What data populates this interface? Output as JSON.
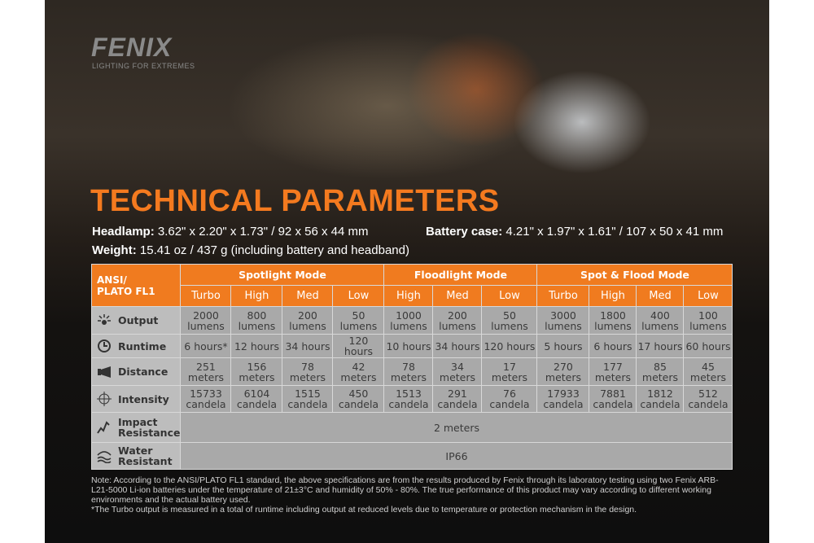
{
  "header": {
    "brand": "FENIX",
    "tagline": "LIGHTING FOR EXTREMES",
    "title": "TECHNICAL PARAMETERS"
  },
  "specs": [
    {
      "label": "Headlamp:",
      "value": "3.62\" x 2.20\" x 1.73\" / 92 x 56 x 44 mm"
    },
    {
      "label": "Battery case:",
      "value": "4.21\" x 1.97\" x 1.61\" / 107 x 50 x 41 mm"
    },
    {
      "label": "Weight:",
      "value": "15.41 oz / 437 g (including battery and headband)"
    }
  ],
  "table": {
    "corner": [
      "ANSI/",
      "PLATO  FL1"
    ],
    "groups": [
      {
        "name": "Spotlight Mode",
        "span": 4
      },
      {
        "name": "Floodlight Mode",
        "span": 3
      },
      {
        "name": "Spot & Flood Mode",
        "span": 4
      }
    ],
    "levels": [
      "Turbo",
      "High",
      "Med",
      "Low",
      "High",
      "Med",
      "Low",
      "Turbo",
      "High",
      "Med",
      "Low"
    ],
    "rows": [
      {
        "label": "Output",
        "cells": [
          "2000\nlumens",
          "800\nlumens",
          "200\nlumens",
          "50\nlumens",
          "1000\nlumens",
          "200\nlumens",
          "50\nlumens",
          "3000\nlumens",
          "1800\nlumens",
          "400\nlumens",
          "100\nlumens"
        ]
      },
      {
        "label": "Runtime",
        "cells": [
          "6 hours*",
          "12 hours",
          "34 hours",
          "120 hours",
          "10 hours",
          "34 hours",
          "120 hours",
          "5 hours",
          "6 hours",
          "17 hours",
          "60 hours"
        ]
      },
      {
        "label": "Distance",
        "cells": [
          "251\nmeters",
          "156\nmeters",
          "78\nmeters",
          "42\nmeters",
          "78\nmeters",
          "34\nmeters",
          "17\nmeters",
          "270\nmeters",
          "177\nmeters",
          "85\nmeters",
          "45\nmeters"
        ]
      },
      {
        "label": "Intensity",
        "cells": [
          "15733\ncandela",
          "6104\ncandela",
          "1515\ncandela",
          "450\ncandela",
          "1513\ncandela",
          "291\ncandela",
          "76\ncandela",
          "17933\ncandela",
          "7881\ncandela",
          "1812\ncandela",
          "512\ncandela"
        ]
      },
      {
        "label": "Impact\nResistance",
        "cells": [
          "2 meters"
        ]
      },
      {
        "label": "Water\nResistant",
        "cells": [
          "IP66"
        ]
      }
    ]
  },
  "notes": [
    "Note: According to the ANSI/PLATO FL1 standard, the above specifications are from the results produced by Fenix through its laboratory testing using two Fenix ARB-L21-5000 Li-ion batteries under the temperature of 21±3°C and humidity of 50% - 80%. The true performance of this product may vary according to different working environments and the actual battery used.",
    "*The Turbo output is measured in a total of runtime including output at reduced levels due to temperature or protection mechanism in the design."
  ]
}
